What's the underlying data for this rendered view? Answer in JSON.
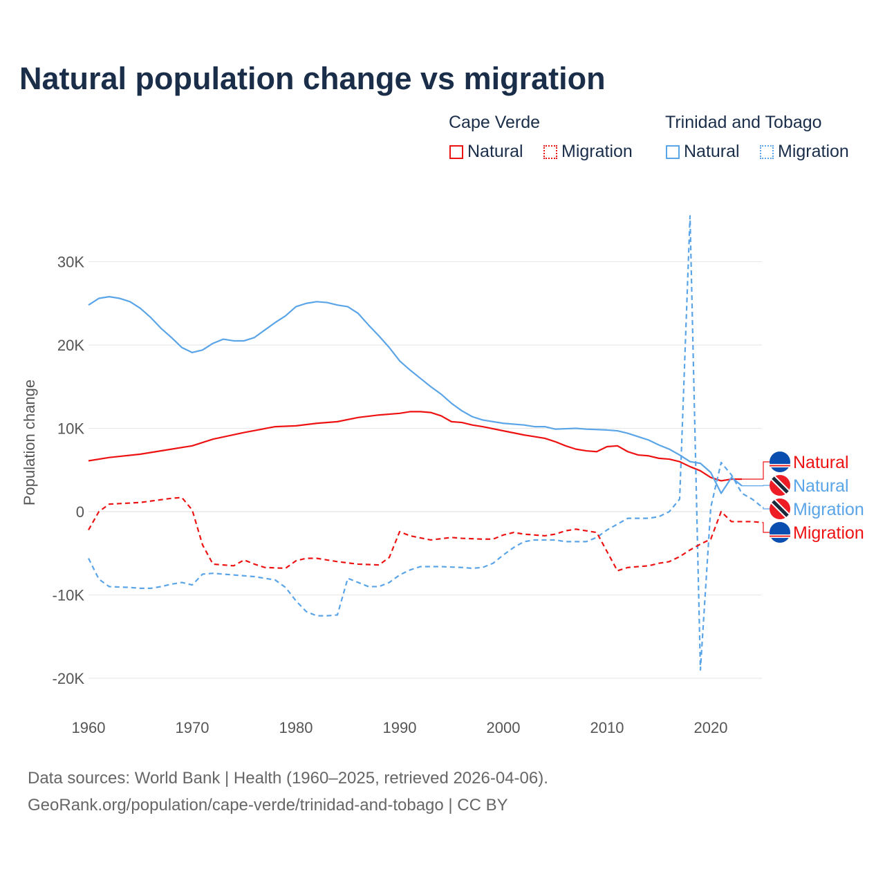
{
  "title": "Natural population change vs migration",
  "legend": {
    "groups": [
      {
        "name": "Cape Verde",
        "items": [
          {
            "label": "Natural",
            "color": "#ee1111",
            "style": "solid"
          },
          {
            "label": "Migration",
            "color": "#ee1111",
            "style": "dotted"
          }
        ]
      },
      {
        "name": "Trinidad and Tobago",
        "items": [
          {
            "label": "Natural",
            "color": "#5aa4e8",
            "style": "solid"
          },
          {
            "label": "Migration",
            "color": "#5aa4e8",
            "style": "dotted"
          }
        ]
      }
    ]
  },
  "footer": {
    "line1": "Data sources: World Bank | Health (1960–2025, retrieved 2026-04-06).",
    "line2": "GeoRank.org/population/cape-verde/trinidad-and-tobago | CC BY"
  },
  "chart_data": {
    "type": "line",
    "title": "Natural population change vs migration",
    "xlabel": "",
    "ylabel": "Population change",
    "xlim": [
      1960,
      2025
    ],
    "ylim": [
      -22000,
      36000
    ],
    "xticks": [
      1960,
      1970,
      1980,
      1990,
      2000,
      2010,
      2020
    ],
    "xtick_labels": [
      "1960",
      "1970",
      "1980",
      "1990",
      "2000",
      "2010",
      "2020"
    ],
    "yticks": [
      -20000,
      -10000,
      0,
      10000,
      20000,
      30000
    ],
    "ytick_labels": [
      "-20K",
      "-10K",
      "0",
      "10K",
      "20K",
      "30K"
    ],
    "grid": true,
    "end_labels": [
      "Natural",
      "Natural",
      "Migration",
      "Migration"
    ],
    "series": [
      {
        "name": "Cape Verde Natural",
        "label": "Natural",
        "flag": "cape-verde",
        "color": "#ee1111",
        "dash": false,
        "x": [
          1960,
          1962,
          1965,
          1968,
          1970,
          1972,
          1975,
          1978,
          1980,
          1982,
          1984,
          1986,
          1988,
          1990,
          1991,
          1992,
          1993,
          1994,
          1995,
          1996,
          1997,
          1998,
          2000,
          2002,
          2004,
          2005,
          2006,
          2007,
          2008,
          2009,
          2010,
          2011,
          2012,
          2013,
          2014,
          2015,
          2016,
          2017,
          2018,
          2019,
          2020,
          2021,
          2022,
          2023
        ],
        "y": [
          6100,
          6500,
          6900,
          7500,
          7900,
          8700,
          9500,
          10200,
          10300,
          10600,
          10800,
          11300,
          11600,
          11800,
          12000,
          12000,
          11900,
          11500,
          10800,
          10700,
          10400,
          10200,
          9700,
          9200,
          8800,
          8400,
          7900,
          7500,
          7300,
          7200,
          7800,
          7900,
          7200,
          6800,
          6700,
          6400,
          6300,
          6000,
          5400,
          4900,
          4100,
          3700,
          3900,
          3900
        ]
      },
      {
        "name": "Trinidad and Tobago Natural",
        "label": "Natural",
        "flag": "trinidad",
        "color": "#5aa4e8",
        "dash": false,
        "x": [
          1960,
          1961,
          1962,
          1963,
          1964,
          1965,
          1966,
          1967,
          1968,
          1969,
          1970,
          1971,
          1972,
          1973,
          1974,
          1975,
          1976,
          1977,
          1978,
          1979,
          1980,
          1981,
          1982,
          1983,
          1984,
          1985,
          1986,
          1987,
          1988,
          1989,
          1990,
          1991,
          1992,
          1993,
          1994,
          1995,
          1996,
          1997,
          1998,
          2000,
          2002,
          2003,
          2004,
          2005,
          2007,
          2008,
          2010,
          2011,
          2012,
          2013,
          2014,
          2015,
          2016,
          2017,
          2018,
          2019,
          2020,
          2021,
          2022,
          2023
        ],
        "y": [
          24800,
          25600,
          25800,
          25600,
          25200,
          24400,
          23300,
          22000,
          20900,
          19700,
          19100,
          19400,
          20200,
          20700,
          20500,
          20500,
          20900,
          21800,
          22700,
          23500,
          24600,
          25000,
          25200,
          25100,
          24800,
          24600,
          23800,
          22400,
          21100,
          19700,
          18100,
          17000,
          16000,
          15000,
          14100,
          13000,
          12100,
          11400,
          11000,
          10600,
          10400,
          10200,
          10200,
          9900,
          10000,
          9900,
          9800,
          9700,
          9400,
          9000,
          8600,
          8000,
          7500,
          6800,
          6000,
          5800,
          4700,
          2200,
          4100,
          3100
        ]
      },
      {
        "name": "Trinidad and Tobago Migration",
        "label": "Migration",
        "flag": "trinidad",
        "color": "#5aa4e8",
        "dash": true,
        "x": [
          1960,
          1961,
          1962,
          1964,
          1965,
          1966,
          1967,
          1968,
          1969,
          1970,
          1971,
          1972,
          1974,
          1976,
          1978,
          1979,
          1980,
          1981,
          1982,
          1983,
          1984,
          1985,
          1986,
          1987,
          1988,
          1989,
          1990,
          1991,
          1992,
          1994,
          1996,
          1997,
          1998,
          1999,
          2000,
          2001,
          2002,
          2003,
          2005,
          2006,
          2008,
          2009,
          2010,
          2011,
          2012,
          2014,
          2015,
          2016,
          2017,
          2018,
          2019,
          2020,
          2021,
          2022,
          2023,
          2024,
          2025
        ],
        "y": [
          -5600,
          -8100,
          -9000,
          -9100,
          -9200,
          -9200,
          -9000,
          -8700,
          -8500,
          -8800,
          -7500,
          -7400,
          -7600,
          -7800,
          -8200,
          -9100,
          -10700,
          -12000,
          -12500,
          -12500,
          -12400,
          -8000,
          -8500,
          -9000,
          -9000,
          -8500,
          -7600,
          -7000,
          -6600,
          -6600,
          -6700,
          -6800,
          -6700,
          -6200,
          -5200,
          -4300,
          -3600,
          -3400,
          -3400,
          -3600,
          -3600,
          -3100,
          -2200,
          -1500,
          -800,
          -800,
          -600,
          0,
          1500,
          35500,
          -19000,
          500,
          5900,
          4400,
          2200,
          1500,
          500
        ]
      },
      {
        "name": "Cape Verde Migration",
        "label": "Migration",
        "flag": "cape-verde",
        "color": "#ee1111",
        "dash": true,
        "x": [
          1960,
          1961,
          1962,
          1965,
          1968,
          1969,
          1970,
          1971,
          1972,
          1974,
          1975,
          1976,
          1977,
          1979,
          1980,
          1981,
          1982,
          1984,
          1986,
          1988,
          1989,
          1990,
          1991,
          1993,
          1995,
          1996,
          1998,
          1999,
          2000,
          2001,
          2002,
          2004,
          2005,
          2006,
          2007,
          2009,
          2010,
          2011,
          2012,
          2014,
          2015,
          2016,
          2017,
          2018,
          2019,
          2020,
          2021,
          2022,
          2024,
          2025
        ],
        "y": [
          -2200,
          0,
          900,
          1100,
          1600,
          1700,
          200,
          -4000,
          -6300,
          -6500,
          -5800,
          -6300,
          -6700,
          -6800,
          -5900,
          -5600,
          -5600,
          -6000,
          -6300,
          -6400,
          -5500,
          -2400,
          -2900,
          -3400,
          -3100,
          -3200,
          -3300,
          -3300,
          -2800,
          -2500,
          -2700,
          -2900,
          -2700,
          -2300,
          -2100,
          -2500,
          -4800,
          -7100,
          -6700,
          -6500,
          -6200,
          -6000,
          -5400,
          -4600,
          -3900,
          -3300,
          0,
          -1200,
          -1200,
          -1300
        ]
      }
    ]
  }
}
